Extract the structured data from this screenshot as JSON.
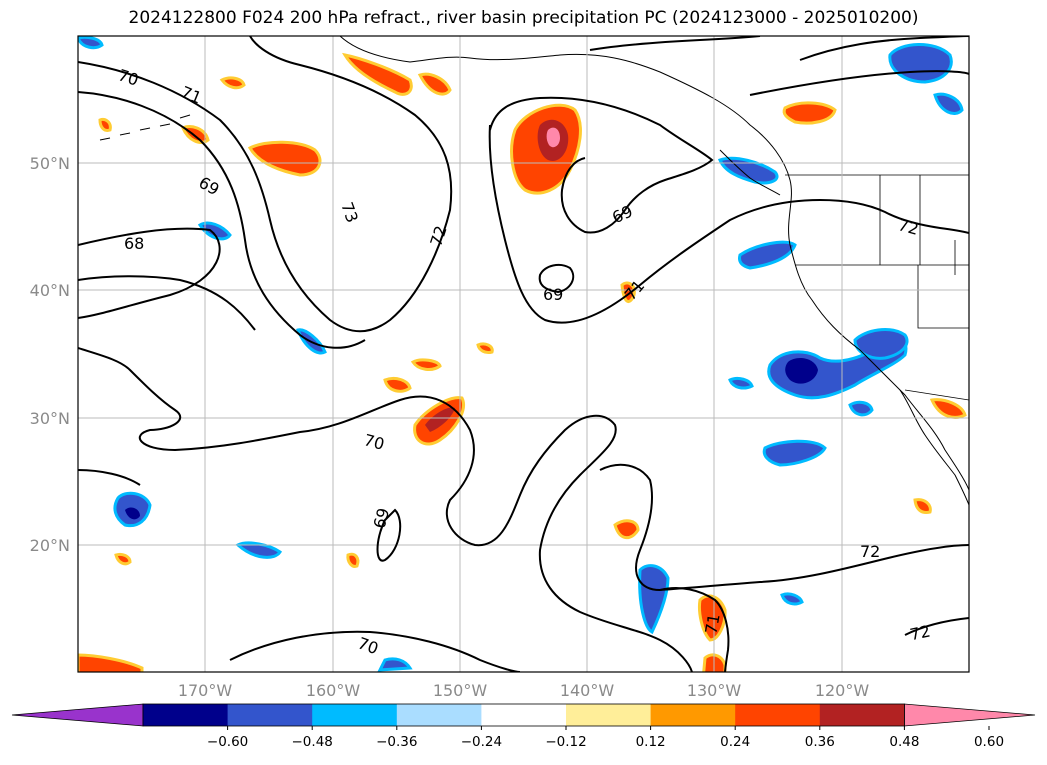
{
  "title": "2024122800 F024 200 hPa refract., river basin precipitation PC (2024123000 - 2025010200)",
  "map": {
    "lon_range": [
      -180,
      -110
    ],
    "lat_range": [
      10,
      60
    ],
    "lat_ticks": [
      {
        "value": 50,
        "label": "50°N"
      },
      {
        "value": 40,
        "label": "40°N"
      },
      {
        "value": 30,
        "label": "30°N"
      },
      {
        "value": 20,
        "label": "20°N"
      }
    ],
    "lon_ticks": [
      {
        "value": -170,
        "label": "170°W"
      },
      {
        "value": -160,
        "label": "160°W"
      },
      {
        "value": -150,
        "label": "150°W"
      },
      {
        "value": -140,
        "label": "140°W"
      },
      {
        "value": -130,
        "label": "130°W"
      },
      {
        "value": -120,
        "label": "120°W"
      }
    ],
    "contour_labels": [
      "70",
      "71",
      "69",
      "73",
      "72",
      "68",
      "69",
      "69",
      "71",
      "72",
      "70",
      "69",
      "72",
      "71",
      "70",
      "72"
    ]
  },
  "colorbar": {
    "colors": [
      "#9933cc",
      "#00008b",
      "#3355cc",
      "#00bbff",
      "#aaddff",
      "#ffffff",
      "#ffee99",
      "#ff9900",
      "#ff4400",
      "#b22222",
      "#ff88aa"
    ],
    "ticks": [
      "−0.60",
      "−0.48",
      "−0.36",
      "−0.24",
      "−0.12",
      "0.12",
      "0.24",
      "0.36",
      "0.48",
      "0.60"
    ]
  }
}
